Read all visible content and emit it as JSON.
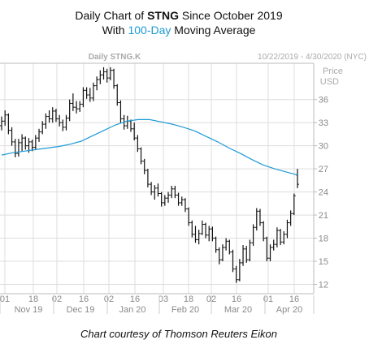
{
  "title": {
    "line1_prefix": "Daily Chart of ",
    "line1_ticker": "STNG",
    "line1_suffix": " Since October 2019",
    "line2_prefix": "With ",
    "line2_accent": "100-Day",
    "line2_suffix": " Moving Average"
  },
  "panel": {
    "symbol_label": "Daily STNG.K",
    "range_label": "10/22/2019 - 4/30/2020 (NYC)",
    "price_label": "Price",
    "currency_label": "USD"
  },
  "caption": "Chart courtesy of Thomson Reuters Eikon",
  "colors": {
    "ohlc": "#111111",
    "moving_average": "#1e9ad6",
    "grid": "#dddddd",
    "axis_text": "#8a8a8a",
    "header_text": "#aaaaaa"
  },
  "chart_data": {
    "type": "line",
    "y_axis": {
      "label": "Price USD",
      "min": 11,
      "max": 40.5,
      "ticks": [
        12,
        15,
        18,
        21,
        24,
        27,
        30,
        33,
        36
      ]
    },
    "x_axis": {
      "ticks": [
        "01",
        "18",
        "02",
        "16",
        "02",
        "16",
        "03",
        "18",
        "02",
        "16",
        "01",
        "16"
      ],
      "months": [
        "Nov 19",
        "Dec 19",
        "Jan 20",
        "Feb 20",
        "Mar 20",
        "Apr 20"
      ]
    },
    "grid": true,
    "series": [
      {
        "name": "STNG.K",
        "kind": "ohlc",
        "values": [
          [
            32.6,
            33.8,
            32.0,
            33.2
          ],
          [
            33.2,
            34.6,
            32.6,
            34.0
          ],
          [
            34.0,
            34.2,
            31.5,
            32.0
          ],
          [
            32.0,
            32.4,
            30.0,
            30.5
          ],
          [
            30.5,
            30.9,
            28.5,
            29.0
          ],
          [
            29.0,
            30.9,
            28.6,
            30.4
          ],
          [
            30.4,
            31.5,
            29.3,
            31.0
          ],
          [
            31.0,
            31.2,
            29.5,
            30.0
          ],
          [
            30.0,
            31.0,
            29.1,
            30.5
          ],
          [
            30.5,
            30.8,
            29.3,
            29.8
          ],
          [
            29.8,
            31.4,
            29.5,
            31.0
          ],
          [
            31.0,
            32.2,
            30.5,
            31.8
          ],
          [
            31.8,
            33.2,
            31.5,
            32.8
          ],
          [
            32.8,
            34.2,
            32.2,
            33.8
          ],
          [
            33.8,
            34.6,
            33.0,
            33.5
          ],
          [
            33.5,
            35.0,
            33.0,
            34.5
          ],
          [
            34.5,
            34.8,
            33.1,
            33.5
          ],
          [
            33.5,
            34.0,
            32.5,
            33.0
          ],
          [
            33.0,
            33.4,
            31.9,
            32.4
          ],
          [
            32.4,
            34.0,
            32.0,
            33.6
          ],
          [
            33.6,
            36.0,
            33.2,
            35.5
          ],
          [
            35.5,
            36.8,
            34.5,
            35.0
          ],
          [
            35.0,
            35.8,
            34.2,
            34.8
          ],
          [
            34.8,
            35.8,
            34.4,
            35.4
          ],
          [
            35.4,
            37.6,
            35.0,
            37.2
          ],
          [
            37.2,
            37.6,
            36.1,
            36.6
          ],
          [
            36.6,
            37.5,
            35.7,
            36.2
          ],
          [
            36.2,
            38.2,
            35.8,
            37.8
          ],
          [
            37.8,
            39.0,
            37.2,
            38.6
          ],
          [
            38.6,
            39.8,
            38.0,
            39.2
          ],
          [
            39.2,
            40.2,
            38.6,
            39.6
          ],
          [
            39.6,
            40.0,
            38.2,
            38.8
          ],
          [
            38.8,
            40.2,
            38.5,
            39.8
          ],
          [
            39.8,
            40.0,
            37.4,
            37.8
          ],
          [
            37.8,
            38.0,
            35.2,
            35.6
          ],
          [
            35.6,
            35.9,
            33.0,
            33.5
          ],
          [
            33.5,
            34.0,
            32.1,
            32.6
          ],
          [
            32.6,
            33.9,
            32.2,
            33.2
          ],
          [
            33.2,
            33.4,
            31.8,
            32.2
          ],
          [
            32.2,
            33.0,
            30.7,
            31.0
          ],
          [
            31.0,
            31.4,
            29.2,
            29.6
          ],
          [
            29.6,
            29.8,
            27.6,
            28.0
          ],
          [
            28.0,
            28.3,
            26.3,
            26.8
          ],
          [
            26.8,
            27.0,
            24.6,
            25.0
          ],
          [
            25.0,
            25.3,
            23.6,
            24.0
          ],
          [
            24.0,
            24.9,
            23.0,
            24.5
          ],
          [
            24.5,
            25.1,
            23.4,
            23.8
          ],
          [
            23.8,
            24.0,
            22.1,
            22.6
          ],
          [
            22.6,
            23.6,
            22.2,
            23.2
          ],
          [
            23.2,
            24.0,
            22.6,
            23.6
          ],
          [
            23.6,
            24.8,
            23.2,
            24.4
          ],
          [
            24.4,
            24.8,
            23.2,
            23.6
          ],
          [
            23.6,
            23.9,
            22.2,
            22.6
          ],
          [
            22.6,
            23.4,
            22.2,
            23.0
          ],
          [
            23.0,
            23.2,
            21.4,
            21.8
          ],
          [
            21.8,
            22.0,
            19.6,
            20.0
          ],
          [
            20.0,
            20.3,
            18.1,
            18.5
          ],
          [
            18.5,
            19.6,
            17.4,
            17.8
          ],
          [
            17.8,
            19.1,
            17.2,
            18.6
          ],
          [
            18.6,
            20.3,
            18.4,
            19.8
          ],
          [
            19.8,
            20.0,
            18.0,
            18.4
          ],
          [
            18.4,
            19.6,
            17.6,
            19.2
          ],
          [
            19.2,
            19.5,
            17.6,
            18.0
          ],
          [
            18.0,
            18.2,
            16.1,
            16.5
          ],
          [
            16.5,
            16.8,
            14.6,
            15.2
          ],
          [
            15.2,
            17.2,
            15.0,
            16.8
          ],
          [
            16.8,
            18.0,
            16.4,
            17.6
          ],
          [
            17.6,
            17.8,
            15.9,
            16.2
          ],
          [
            16.2,
            16.5,
            13.6,
            14.0
          ],
          [
            14.0,
            14.4,
            12.2,
            12.6
          ],
          [
            12.6,
            15.3,
            12.4,
            14.8
          ],
          [
            14.8,
            17.1,
            14.4,
            16.6
          ],
          [
            16.6,
            17.0,
            14.8,
            15.2
          ],
          [
            15.2,
            17.8,
            15.0,
            17.4
          ],
          [
            17.4,
            19.8,
            17.0,
            19.4
          ],
          [
            19.4,
            21.9,
            19.0,
            21.5
          ],
          [
            21.5,
            21.8,
            19.6,
            20.0
          ],
          [
            20.0,
            20.2,
            17.6,
            18.0
          ],
          [
            18.0,
            18.2,
            15.0,
            15.4
          ],
          [
            15.4,
            17.2,
            15.0,
            16.8
          ],
          [
            16.8,
            17.8,
            16.4,
            17.2
          ],
          [
            17.2,
            19.4,
            16.8,
            19.0
          ],
          [
            19.0,
            19.2,
            17.1,
            17.5
          ],
          [
            17.5,
            18.9,
            17.2,
            18.5
          ],
          [
            18.5,
            20.4,
            18.0,
            20.0
          ],
          [
            20.0,
            21.6,
            19.6,
            21.2
          ],
          [
            21.2,
            23.8,
            21.0,
            23.5
          ],
          [
            26.2,
            27.0,
            24.5,
            25.0
          ]
        ]
      },
      {
        "name": "100-Day Moving Average",
        "kind": "line",
        "values": [
          28.8,
          29.1,
          29.3,
          29.5,
          29.7,
          29.9,
          30.2,
          30.6,
          31.3,
          32.0,
          32.7,
          33.2,
          33.4,
          33.4,
          33.1,
          32.8,
          32.4,
          31.9,
          31.2,
          30.5,
          29.7,
          29.0,
          28.2,
          27.5,
          27.0,
          26.6,
          26.2
        ]
      }
    ]
  }
}
